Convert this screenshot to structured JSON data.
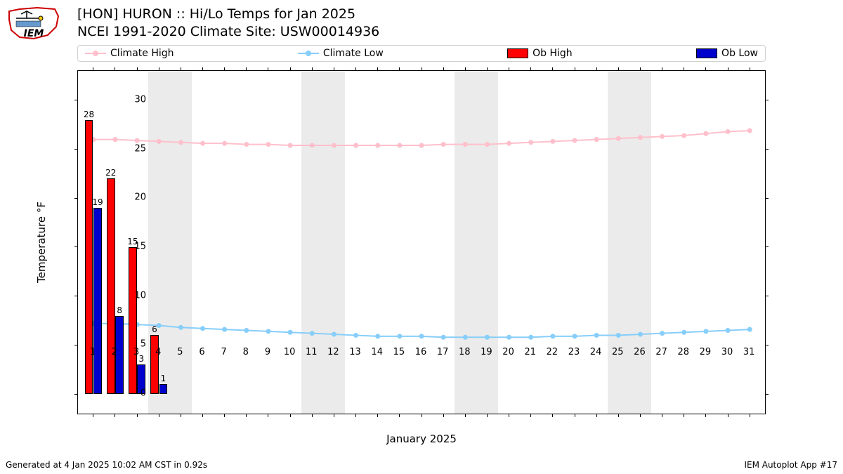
{
  "title_line1": "[HON] HURON :: Hi/Lo Temps for Jan 2025",
  "title_line2": "NCEI 1991-2020 Climate Site: USW00014936",
  "ylabel": "Temperature °F",
  "xlabel": "January 2025",
  "footer_left": "Generated at 4 Jan 2025 10:02 AM CST in 0.92s",
  "footer_right": "IEM Autoplot App #17",
  "legend": {
    "climate_high": "Climate High",
    "climate_low": "Climate Low",
    "ob_high": "Ob High",
    "ob_low": "Ob Low"
  },
  "colors": {
    "climate_high": "#ffc0cb",
    "climate_low": "#87cefa",
    "ob_high": "#ff0000",
    "ob_low": "#0000cc",
    "weekend_band": "#ebebeb",
    "axis": "#000000",
    "bg": "#ffffff"
  },
  "chart": {
    "type": "line+bar",
    "xlim": [
      0.3,
      31.7
    ],
    "ylim": [
      -2,
      33
    ],
    "yticks": [
      0,
      5,
      10,
      15,
      20,
      25,
      30
    ],
    "xticks": [
      1,
      2,
      3,
      4,
      5,
      6,
      7,
      8,
      9,
      10,
      11,
      12,
      13,
      14,
      15,
      16,
      17,
      18,
      19,
      20,
      21,
      22,
      23,
      24,
      25,
      26,
      27,
      28,
      29,
      30,
      31
    ],
    "weekend_bands": [
      [
        3.5,
        5.5
      ],
      [
        10.5,
        12.5
      ],
      [
        17.5,
        19.5
      ],
      [
        24.5,
        26.5
      ]
    ],
    "climate_high": [
      26.0,
      26.0,
      25.9,
      25.8,
      25.7,
      25.6,
      25.6,
      25.5,
      25.5,
      25.4,
      25.4,
      25.4,
      25.4,
      25.4,
      25.4,
      25.4,
      25.5,
      25.5,
      25.5,
      25.6,
      25.7,
      25.8,
      25.9,
      26.0,
      26.1,
      26.2,
      26.3,
      26.4,
      26.6,
      26.8,
      26.9
    ],
    "climate_low": [
      7.2,
      7.2,
      7.1,
      7.0,
      6.8,
      6.7,
      6.6,
      6.5,
      6.4,
      6.3,
      6.2,
      6.1,
      6.0,
      5.9,
      5.9,
      5.9,
      5.8,
      5.8,
      5.8,
      5.8,
      5.8,
      5.9,
      5.9,
      6.0,
      6.0,
      6.1,
      6.2,
      6.3,
      6.4,
      6.5,
      6.6
    ],
    "ob_high": [
      {
        "day": 1,
        "val": 28
      },
      {
        "day": 2,
        "val": 22
      },
      {
        "day": 3,
        "val": 15
      },
      {
        "day": 4,
        "val": 6
      }
    ],
    "ob_low": [
      {
        "day": 1,
        "val": 19
      },
      {
        "day": 2,
        "val": 8
      },
      {
        "day": 3,
        "val": 3
      },
      {
        "day": 4,
        "val": 1
      }
    ],
    "bar_width_days": 0.38,
    "marker_radius": 3.5,
    "line_width": 2
  }
}
